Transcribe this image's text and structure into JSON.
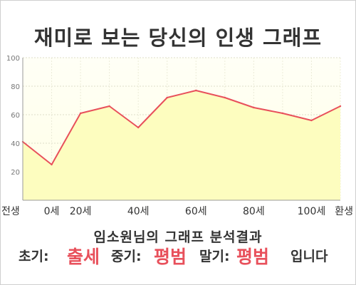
{
  "title": "재미로 보는 당신의 인생 그래프",
  "chart_data": {
    "type": "area",
    "title": "재미로 보는 당신의 인생 그래프",
    "x_tick_labels": [
      "전생",
      "0세",
      "20세",
      "40세",
      "60세",
      "80세",
      "100세",
      "환생"
    ],
    "x": [
      "전생",
      "0세",
      "20세",
      "30세",
      "40세",
      "50세",
      "60세",
      "70세",
      "80세",
      "90세",
      "100세",
      "환생"
    ],
    "values": [
      41,
      25,
      61,
      66,
      51,
      72,
      77,
      72,
      65,
      61,
      56,
      66
    ],
    "ylim": [
      0,
      100
    ],
    "y_ticks": [
      20,
      40,
      60,
      80,
      100
    ],
    "grid": true,
    "line_color": "#e8505b",
    "fill_color": "#fdfdbf"
  },
  "result": {
    "heading": "임소원님의 그래프 분석결과",
    "early_label": "초기:",
    "early_value": "출세",
    "mid_label": "중기:",
    "mid_value": "평범",
    "late_label": "말기:",
    "late_value": "평범",
    "suffix": "입니다"
  }
}
